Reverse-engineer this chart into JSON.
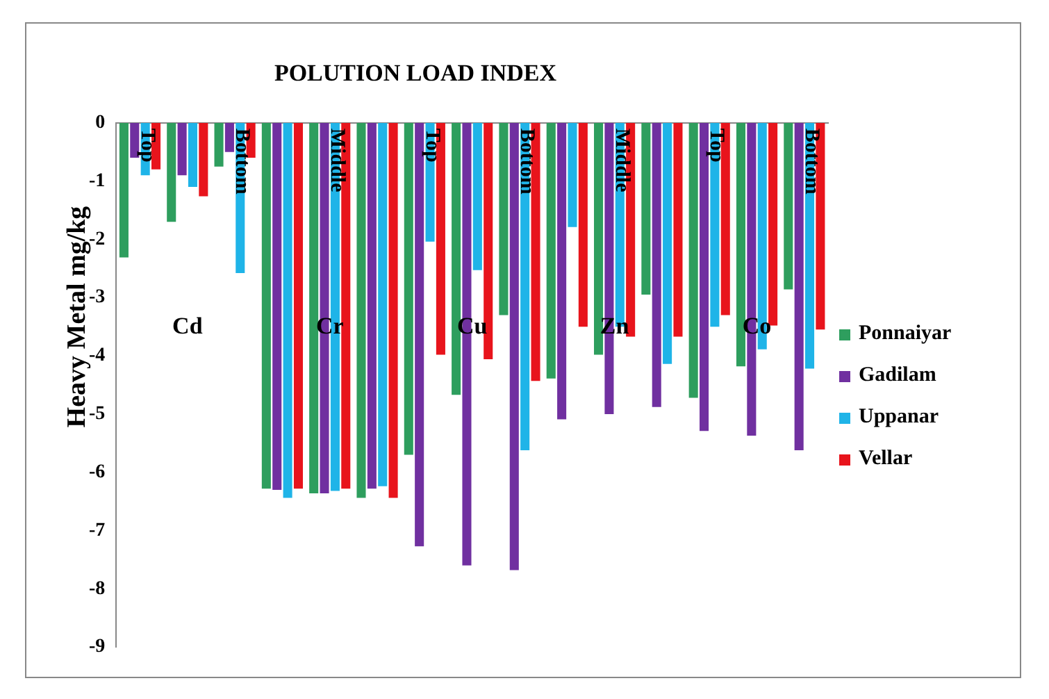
{
  "chart_data": {
    "type": "bar",
    "title": "POLUTION LOAD INDEX",
    "ylabel": "Heavy Metal mg/kg",
    "categories": [
      "Top",
      null,
      "Bottom",
      null,
      "Middle",
      null,
      "Top",
      null,
      "Bottom",
      null,
      "Middle",
      null,
      "Top",
      null,
      "Bottom"
    ],
    "series": [
      {
        "name": "Ponnaiyar",
        "color": "#2e9e5e",
        "values": [
          -2.31,
          -1.7,
          -0.75,
          -6.28,
          -6.36,
          -6.44,
          -5.7,
          -4.67,
          -3.3,
          -4.39,
          -3.98,
          -2.95,
          -4.72,
          -4.18,
          -2.86
        ]
      },
      {
        "name": "Gadilam",
        "color": "#7030a0",
        "values": [
          -0.6,
          -0.9,
          -0.5,
          -6.3,
          -6.36,
          -6.28,
          -7.27,
          -7.6,
          -7.68,
          -5.09,
          -5.0,
          -4.88,
          -5.29,
          -5.37,
          -5.62
        ]
      },
      {
        "name": "Uppanar",
        "color": "#1fb4e8",
        "values": [
          -0.9,
          -1.1,
          -2.58,
          -6.44,
          -6.32,
          -6.24,
          -2.04,
          -2.53,
          -5.62,
          -1.79,
          -3.5,
          -4.14,
          -3.5,
          -3.89,
          -4.22
        ]
      },
      {
        "name": "Vellar",
        "color": "#e8141c",
        "values": [
          -0.8,
          -1.26,
          -0.6,
          -6.28,
          -6.28,
          -6.44,
          -3.98,
          -4.06,
          -4.43,
          -3.5,
          -3.67,
          -3.67,
          -3.3,
          -3.48,
          -3.55
        ]
      }
    ],
    "annotations": [
      "Cd",
      "Cr",
      "Cu",
      "Zn",
      "Co"
    ],
    "ylim": [
      -9,
      0
    ],
    "yticks": [
      0,
      -1,
      -2,
      -3,
      -4,
      -5,
      -6,
      -7,
      -8,
      -9
    ],
    "grid": false,
    "legend": "right"
  }
}
